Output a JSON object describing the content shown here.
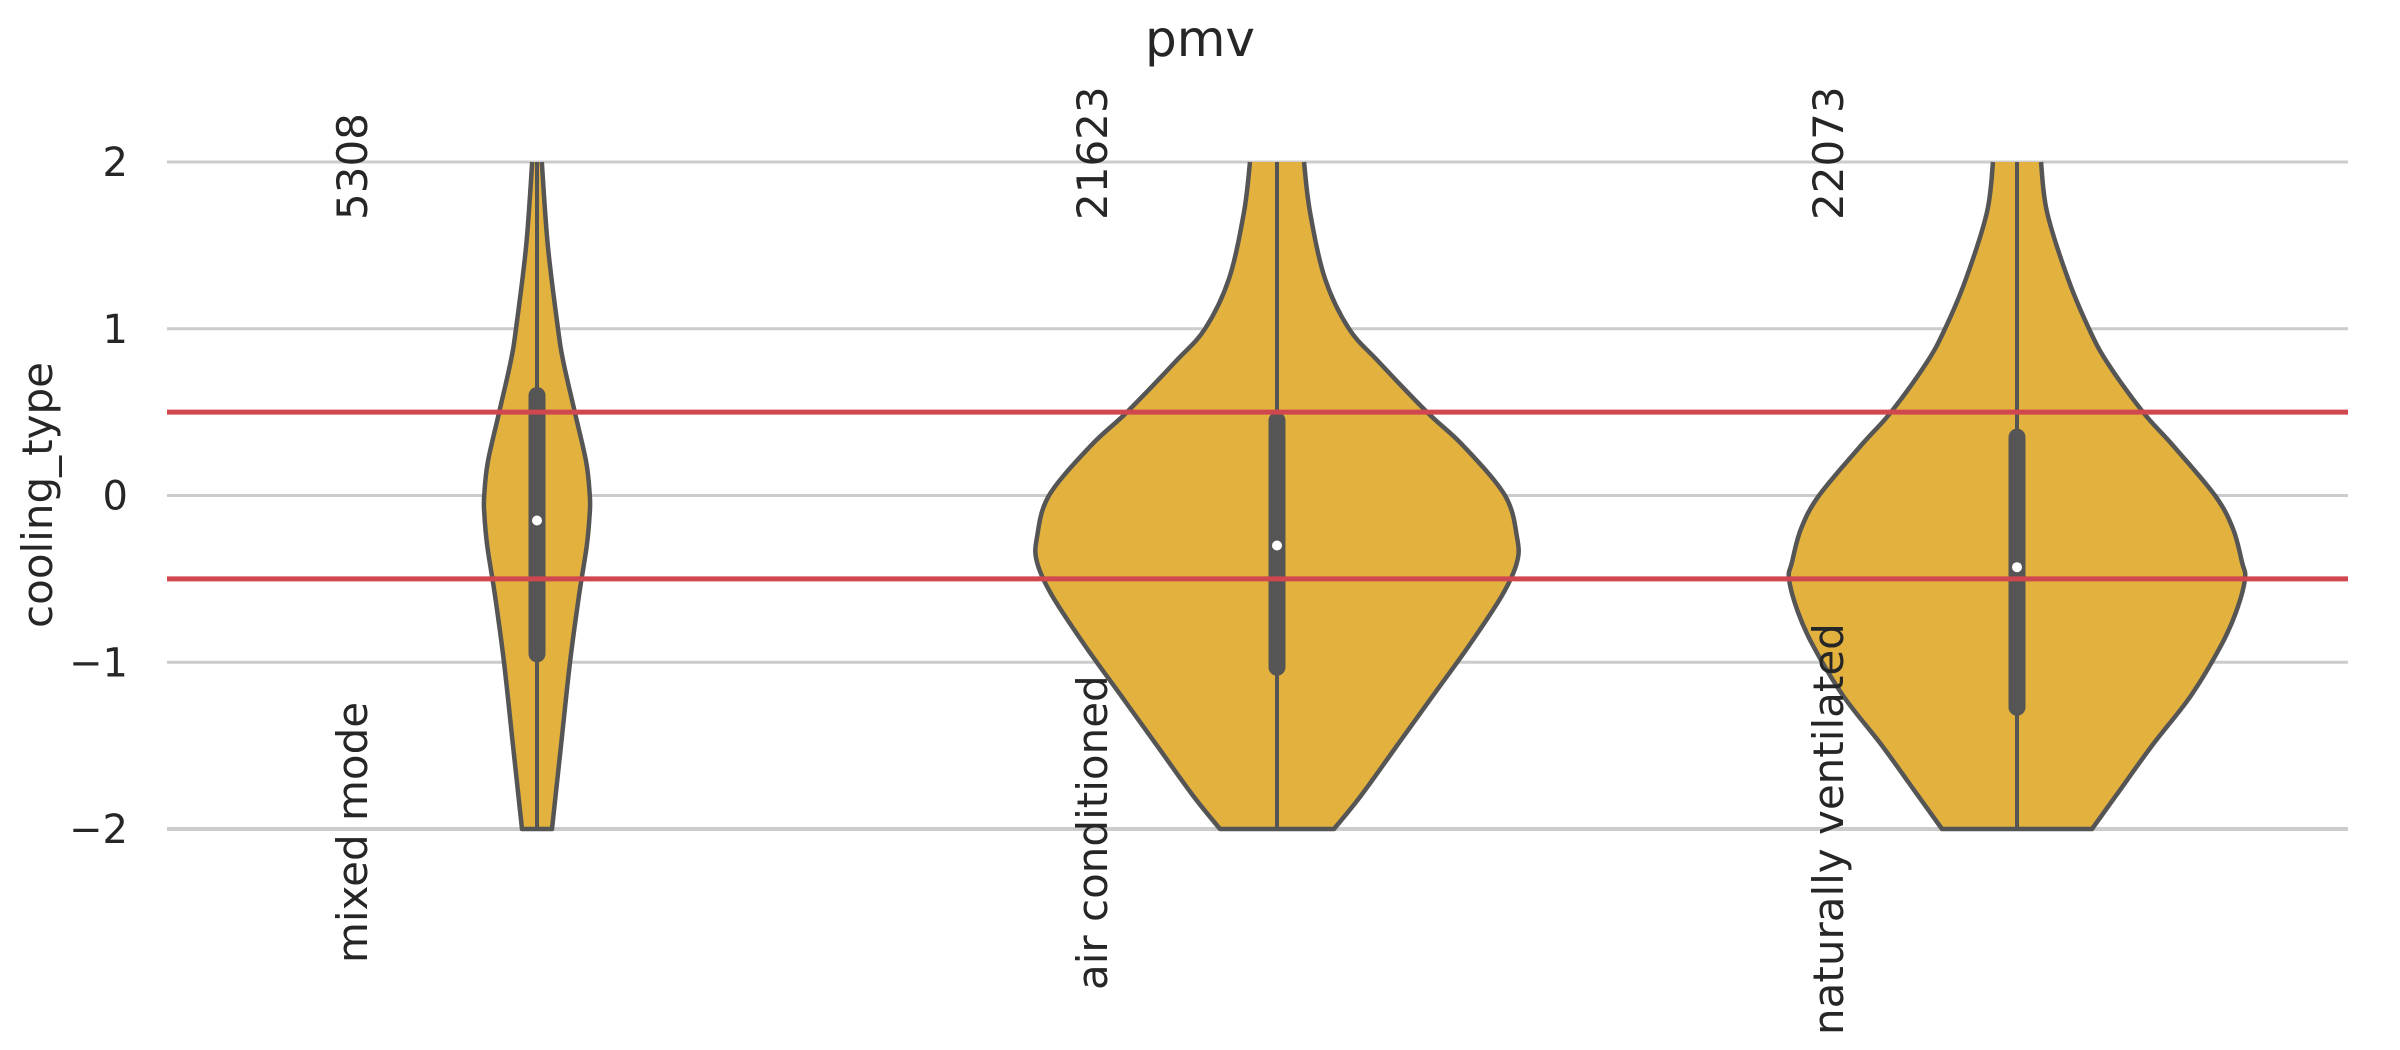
{
  "chart_data": {
    "type": "violin",
    "title": "pmv",
    "ylabel": "cooling_type",
    "xlabel": "",
    "ylim": [
      -2,
      2
    ],
    "yticks": [
      2,
      1,
      0,
      -1,
      -2
    ],
    "ytick_labels": [
      "2",
      "1",
      "0",
      "−1",
      "−2"
    ],
    "grid": true,
    "reference_lines": [
      0.5,
      -0.5
    ],
    "colors": {
      "violin_fill": "#e3b13e",
      "violin_edge": "#555555",
      "reference_line": "#d0474f",
      "grid": "#cccccc"
    },
    "categories": [
      "mixed mode",
      "air conditioned",
      "naturally ventilated"
    ],
    "counts": [
      "5308",
      "21623",
      "22073"
    ],
    "violins": [
      {
        "category": "mixed mode",
        "count": 5308,
        "median": -0.15,
        "q1": -0.95,
        "q3": 0.6,
        "profile": [
          [
            -2.0,
            0.025
          ],
          [
            -1.5,
            0.04
          ],
          [
            -1.0,
            0.055
          ],
          [
            -0.6,
            0.07
          ],
          [
            -0.3,
            0.083
          ],
          [
            -0.1,
            0.088
          ],
          [
            0.0,
            0.088
          ],
          [
            0.2,
            0.082
          ],
          [
            0.5,
            0.063
          ],
          [
            0.8,
            0.044
          ],
          [
            1.0,
            0.035
          ],
          [
            1.5,
            0.018
          ],
          [
            2.0,
            0.008
          ]
        ]
      },
      {
        "category": "air conditioned",
        "count": 21623,
        "median": -0.3,
        "q1": -1.03,
        "q3": 0.45,
        "profile": [
          [
            -2.0,
            0.095
          ],
          [
            -1.8,
            0.14
          ],
          [
            -1.5,
            0.2
          ],
          [
            -1.2,
            0.26
          ],
          [
            -0.9,
            0.32
          ],
          [
            -0.6,
            0.375
          ],
          [
            -0.4,
            0.4
          ],
          [
            -0.25,
            0.4
          ],
          [
            0.0,
            0.38
          ],
          [
            0.3,
            0.31
          ],
          [
            0.5,
            0.25
          ],
          [
            0.8,
            0.17
          ],
          [
            1.0,
            0.12
          ],
          [
            1.3,
            0.08
          ],
          [
            1.7,
            0.055
          ],
          [
            2.0,
            0.045
          ]
        ]
      },
      {
        "category": "naturally ventilated",
        "count": 22073,
        "median": -0.43,
        "q1": -1.27,
        "q3": 0.35,
        "profile": [
          [
            -2.0,
            0.125
          ],
          [
            -1.8,
            0.165
          ],
          [
            -1.5,
            0.225
          ],
          [
            -1.2,
            0.29
          ],
          [
            -0.9,
            0.34
          ],
          [
            -0.7,
            0.365
          ],
          [
            -0.5,
            0.38
          ],
          [
            -0.4,
            0.375
          ],
          [
            -0.2,
            0.36
          ],
          [
            0.0,
            0.33
          ],
          [
            0.3,
            0.26
          ],
          [
            0.5,
            0.21
          ],
          [
            0.8,
            0.15
          ],
          [
            1.0,
            0.12
          ],
          [
            1.3,
            0.085
          ],
          [
            1.7,
            0.05
          ],
          [
            2.0,
            0.04
          ]
        ]
      }
    ]
  }
}
